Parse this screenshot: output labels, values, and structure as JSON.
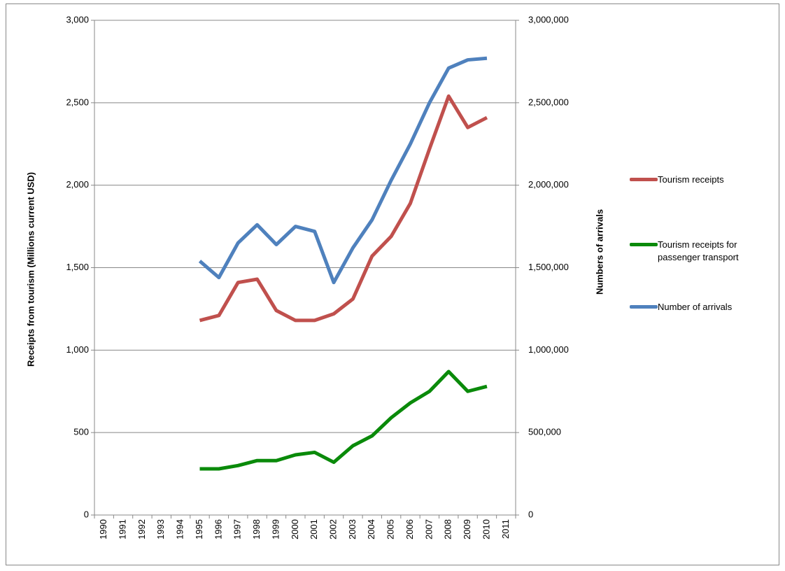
{
  "chart_data": {
    "type": "line",
    "y_label": "Receipts from tourism (Millions current USD)",
    "y2_label": "Numbers of arrivals",
    "categories": [
      "1990",
      "1991",
      "1992",
      "1993",
      "1994",
      "1995",
      "1996",
      "1997",
      "1998",
      "1999",
      "2000",
      "2001",
      "2002",
      "2003",
      "2004",
      "2005",
      "2006",
      "2007",
      "2008",
      "2009",
      "2010",
      "2011"
    ],
    "ylim": [
      0,
      3000
    ],
    "yticks": [
      0,
      500,
      {
        "value": 1000,
        "label": "1,000"
      },
      {
        "value": 1500,
        "label": "1,500"
      },
      {
        "value": 2000,
        "label": "2,000"
      },
      {
        "value": 2500,
        "label": "2,500"
      },
      {
        "value": 3000,
        "label": "3,000"
      }
    ],
    "y2lim": [
      0,
      3000000
    ],
    "y2ticks": [
      0,
      {
        "value": 500000,
        "label": "500,000"
      },
      {
        "value": 1000000,
        "label": "1,000,000"
      },
      {
        "value": 1500000,
        "label": "1,500,000"
      },
      {
        "value": 2000000,
        "label": "2,000,000"
      },
      {
        "value": 2500000,
        "label": "2,500,000"
      },
      {
        "value": 3000000,
        "label": "3,000,000"
      }
    ],
    "grid": true,
    "legend": "right",
    "series": [
      {
        "name": "Tourism receipts",
        "color": "#c0504d",
        "values": [
          null,
          null,
          null,
          null,
          null,
          1180,
          1210,
          1410,
          1430,
          1240,
          1180,
          1180,
          1220,
          1310,
          1570,
          1690,
          1890,
          2220,
          2540,
          2350,
          2410,
          null
        ]
      },
      {
        "name": "Tourism receipts for passenger transport",
        "color": "#0a8a0a",
        "values": [
          null,
          null,
          null,
          null,
          null,
          280,
          280,
          300,
          330,
          330,
          365,
          380,
          320,
          420,
          480,
          590,
          680,
          750,
          870,
          750,
          780,
          null
        ]
      },
      {
        "name": "Number of arrivals",
        "color": "#4f81bd",
        "axis": "y2",
        "values": [
          null,
          null,
          null,
          null,
          null,
          1540000,
          1440000,
          1650000,
          1760000,
          1640000,
          1750000,
          1720000,
          1410000,
          1620000,
          1790000,
          2030000,
          2250000,
          2500000,
          2710000,
          2760000,
          2770000,
          null
        ]
      }
    ]
  }
}
